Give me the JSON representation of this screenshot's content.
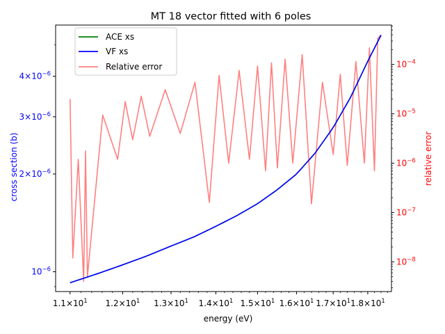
{
  "chart_data": {
    "type": "line",
    "title": "MT 18 vector fitted with 6 poles",
    "xlabel": "energy (eV)",
    "ylabel_left": "cross section (b)",
    "ylabel_right": "relative error",
    "xscale": "log",
    "yscale_left": "log",
    "yscale_right": "log",
    "xlim": [
      10.74,
      18.72
    ],
    "ylim_left": [
      8.69e-07,
      5.75e-06
    ],
    "ylim_right": [
      2.5e-09,
      0.00063
    ],
    "x_ticks": [
      {
        "value": 11,
        "mantissa": "1.1",
        "base": "10",
        "exp": "1"
      },
      {
        "value": 12,
        "mantissa": "1.2",
        "base": "10",
        "exp": "1"
      },
      {
        "value": 13,
        "mantissa": "1.3",
        "base": "10",
        "exp": "1"
      },
      {
        "value": 14,
        "mantissa": "1.4",
        "base": "10",
        "exp": "1"
      },
      {
        "value": 15,
        "mantissa": "1.5",
        "base": "10",
        "exp": "1"
      },
      {
        "value": 16,
        "mantissa": "1.6",
        "base": "10",
        "exp": "1"
      },
      {
        "value": 17,
        "mantissa": "1.7",
        "base": "10",
        "exp": "1"
      },
      {
        "value": 18,
        "mantissa": "1.8",
        "base": "10",
        "exp": "1"
      }
    ],
    "y_left_ticks": [
      {
        "value": 1e-06,
        "mantissa": "",
        "base": "10",
        "exp": "−6"
      },
      {
        "value": 2e-06,
        "mantissa": "2",
        "base": "10",
        "exp": "−6"
      },
      {
        "value": 3e-06,
        "mantissa": "3",
        "base": "10",
        "exp": "−6"
      },
      {
        "value": 4e-06,
        "mantissa": "4",
        "base": "10",
        "exp": "−6"
      }
    ],
    "y_right_ticks": [
      {
        "value": 1e-08,
        "base": "10",
        "exp": "−8"
      },
      {
        "value": 1e-07,
        "base": "10",
        "exp": "−7"
      },
      {
        "value": 1e-06,
        "base": "10",
        "exp": "−6"
      },
      {
        "value": 1e-05,
        "base": "10",
        "exp": "−5"
      },
      {
        "value": 0.0001,
        "base": "10",
        "exp": "−4"
      }
    ],
    "legend_position": "upper-left",
    "series": [
      {
        "name": "ACE xs",
        "axis": "left",
        "color": "#008000",
        "x": [
          11.0,
          11.5,
          12.0,
          12.5,
          13.0,
          13.5,
          14.0,
          14.5,
          15.0,
          15.5,
          16.0,
          16.5,
          17.0,
          17.5,
          18.0,
          18.4
        ],
        "y": [
          9.25e-07,
          9.85e-07,
          1.05e-06,
          1.12e-06,
          1.2e-06,
          1.28e-06,
          1.38e-06,
          1.49e-06,
          1.62e-06,
          1.79e-06,
          2e-06,
          2.32e-06,
          2.78e-06,
          3.45e-06,
          4.45e-06,
          5.35e-06
        ]
      },
      {
        "name": "VF xs",
        "axis": "left",
        "color": "#0000ff",
        "x": [
          11.0,
          11.5,
          12.0,
          12.5,
          13.0,
          13.5,
          14.0,
          14.5,
          15.0,
          15.5,
          16.0,
          16.5,
          17.0,
          17.5,
          18.0,
          18.4
        ],
        "y": [
          9.25e-07,
          9.85e-07,
          1.05e-06,
          1.12e-06,
          1.2e-06,
          1.28e-06,
          1.38e-06,
          1.49e-06,
          1.62e-06,
          1.79e-06,
          2e-06,
          2.32e-06,
          2.78e-06,
          3.45e-06,
          4.45e-06,
          5.35e-06
        ]
      },
      {
        "name": "Relative error",
        "axis": "right",
        "color": "#ff0000",
        "alpha": 0.5,
        "x": [
          11.0,
          11.1,
          11.15,
          11.25,
          11.4,
          11.5,
          11.7,
          12.0,
          12.5,
          13.0,
          13.5,
          14.0,
          14.5,
          15.0,
          15.5,
          16.0,
          16.45,
          16.5,
          17.0,
          17.5,
          18.0,
          18.4
        ],
        "envelope": [
          2e-05,
          6e-06,
          1.2e-06,
          1.5e-06,
          3e-06,
          7e-06,
          1.2e-05,
          1.7e-05,
          2.5e-05,
          3.3e-05,
          4.3e-05,
          5.8e-05,
          7.4e-05,
          9.3e-05,
          0.000115,
          0.00015,
          0.000175,
          4e-05,
          5e-05,
          9e-05,
          0.0002,
          0.0004
        ],
        "dips": [
          {
            "x": 11.05,
            "y": 1.2e-08
          },
          {
            "x": 11.25,
            "y": 4e-09
          },
          {
            "x": 11.32,
            "y": 5e-09
          },
          {
            "x": 11.9,
            "y": 1.2e-06
          },
          {
            "x": 12.2,
            "y": 3e-06
          },
          {
            "x": 12.55,
            "y": 3.5e-06
          },
          {
            "x": 13.2,
            "y": 4e-06
          },
          {
            "x": 13.85,
            "y": 1.6e-07
          },
          {
            "x": 14.3,
            "y": 1e-06
          },
          {
            "x": 14.8,
            "y": 1.2e-06
          },
          {
            "x": 15.2,
            "y": 7e-07
          },
          {
            "x": 15.5,
            "y": 8e-07
          },
          {
            "x": 15.9,
            "y": 1e-06
          },
          {
            "x": 16.4,
            "y": 1.5e-07
          },
          {
            "x": 17.0,
            "y": 1.5e-06
          },
          {
            "x": 17.4,
            "y": 9e-07
          },
          {
            "x": 17.9,
            "y": 1e-06
          },
          {
            "x": 18.2,
            "y": 7e-07
          }
        ]
      }
    ]
  }
}
